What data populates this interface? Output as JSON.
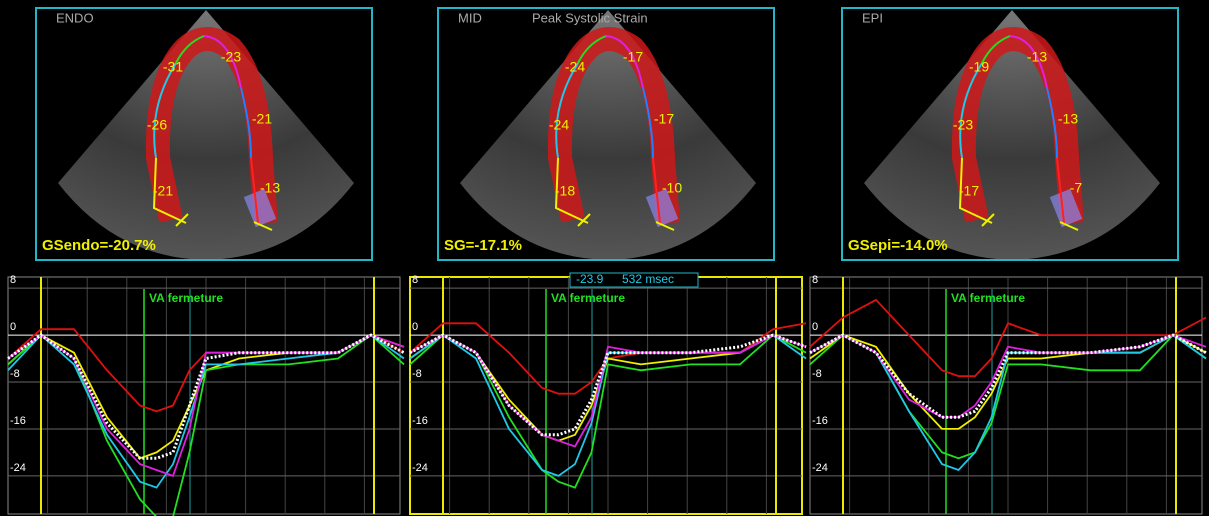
{
  "panels": [
    {
      "label": "ENDO",
      "global": "GSendo=-20.7%",
      "segments": [
        "-31",
        "-23",
        "-26",
        "-21",
        "-21",
        "-13"
      ]
    },
    {
      "label": "MID",
      "title": "Peak Systolic Strain",
      "global": "SG=-17.1%",
      "segments": [
        "-24",
        "-17",
        "-24",
        "-17",
        "-18",
        "-10"
      ]
    },
    {
      "label": "EPI",
      "global": "GSepi=-14.0%",
      "segments": [
        "-19",
        "-13",
        "-23",
        "-13",
        "-17",
        "-7"
      ]
    }
  ],
  "chart_data": [
    {
      "type": "line",
      "annotation": "VA fermeture",
      "x": [
        0,
        2,
        4,
        6,
        8,
        9,
        10,
        11,
        12,
        14,
        17,
        20,
        22,
        24
      ],
      "xlim": [
        0,
        24
      ],
      "ylim": [
        -30.5,
        9.9
      ],
      "yticks": [
        8,
        0,
        -8,
        -16,
        -24
      ],
      "grid": true,
      "series": [
        {
          "color": "#e01010",
          "values": [
            -4,
            1,
            1,
            -6,
            -12,
            -13,
            -12,
            -6,
            -3,
            -3,
            -3,
            -3,
            0,
            -3
          ]
        },
        {
          "color": "#f0f000",
          "values": [
            -5,
            0,
            -3,
            -14,
            -21,
            -20,
            -18,
            -12,
            -6,
            -4,
            -3,
            -3,
            0,
            -2
          ]
        },
        {
          "color": "#20e020",
          "values": [
            -5,
            0,
            -4,
            -18,
            -28,
            -31,
            -31,
            -20,
            -6,
            -5,
            -5,
            -4,
            0,
            -5
          ]
        },
        {
          "color": "#20c8e8",
          "values": [
            -6,
            0,
            -5,
            -17,
            -25,
            -26,
            -22,
            -14,
            -5,
            -5,
            -4,
            -3,
            0,
            -4
          ]
        },
        {
          "color": "#e020e0",
          "values": [
            -4,
            0,
            -4,
            -16,
            -22,
            -23,
            -24,
            -16,
            -3,
            -3,
            -3,
            -3,
            0,
            -2
          ]
        },
        {
          "color": "#ffffff",
          "values": [
            -4,
            0,
            -4,
            -15,
            -21,
            -21,
            -20,
            -12,
            -4,
            -3,
            -3,
            -3,
            0,
            -3
          ]
        }
      ]
    },
    {
      "type": "line",
      "annotation": "VA fermeture",
      "annotations": [
        "-23.9",
        "532 msec"
      ],
      "x": [
        0,
        2,
        4,
        6,
        8,
        9,
        10,
        11,
        12,
        14,
        17,
        20,
        22,
        24
      ],
      "xlim": [
        0,
        24
      ],
      "ylim": [
        -30.5,
        9.9
      ],
      "yticks": [
        8,
        0,
        -8,
        -16,
        -24
      ],
      "grid": true,
      "series": [
        {
          "color": "#e01010",
          "values": [
            -3,
            2,
            2,
            -3,
            -9,
            -10,
            -10,
            -8,
            -4,
            -3,
            -3,
            -3,
            1,
            2
          ]
        },
        {
          "color": "#f0f000",
          "values": [
            -4,
            0,
            -3,
            -11,
            -17,
            -18,
            -17,
            -12,
            -4,
            -5,
            -4,
            -3,
            0,
            -2
          ]
        },
        {
          "color": "#20e020",
          "values": [
            -5,
            0,
            -3,
            -14,
            -23,
            -25,
            -26,
            -20,
            -5,
            -6,
            -5,
            -5,
            0,
            -3
          ]
        },
        {
          "color": "#20c8e8",
          "values": [
            -4,
            0,
            -4,
            -16,
            -23,
            -24,
            -22,
            -15,
            -3,
            -3,
            -3,
            -3,
            0,
            -4
          ]
        },
        {
          "color": "#e020e0",
          "values": [
            -3,
            0,
            -3,
            -12,
            -17,
            -18,
            -19,
            -14,
            -2,
            -3,
            -3,
            -3,
            0,
            -2
          ]
        },
        {
          "color": "#ffffff",
          "values": [
            -3,
            0,
            -3,
            -12,
            -17,
            -17,
            -16,
            -11,
            -3,
            -3,
            -3,
            -2,
            0,
            -2
          ]
        }
      ]
    },
    {
      "type": "line",
      "annotation": "VA fermeture",
      "x": [
        0,
        2,
        4,
        6,
        8,
        9,
        10,
        11,
        12,
        14,
        17,
        20,
        22,
        24
      ],
      "xlim": [
        0,
        24
      ],
      "ylim": [
        -30.5,
        9.9
      ],
      "yticks": [
        8,
        0,
        -8,
        -16,
        -24
      ],
      "grid": true,
      "series": [
        {
          "color": "#e01010",
          "values": [
            -2,
            3,
            6,
            0,
            -6,
            -7,
            -7,
            -4,
            2,
            0,
            0,
            0,
            0,
            3
          ]
        },
        {
          "color": "#f0f000",
          "values": [
            -4,
            0,
            -2,
            -10,
            -16,
            -16,
            -14,
            -10,
            -4,
            -4,
            -3,
            -3,
            0,
            -3
          ]
        },
        {
          "color": "#20e020",
          "values": [
            -5,
            0,
            -3,
            -13,
            -20,
            -21,
            -20,
            -15,
            -5,
            -5,
            -6,
            -6,
            0,
            -4
          ]
        },
        {
          "color": "#20c8e8",
          "values": [
            -3,
            0,
            -3,
            -13,
            -22,
            -23,
            -20,
            -14,
            -3,
            -3,
            -3,
            -3,
            0,
            -4
          ]
        },
        {
          "color": "#e020e0",
          "values": [
            -3,
            0,
            -3,
            -11,
            -14,
            -14,
            -12,
            -8,
            -2,
            -3,
            -3,
            -2,
            0,
            -2
          ]
        },
        {
          "color": "#ffffff",
          "values": [
            -3,
            0,
            -3,
            -10,
            -14,
            -14,
            -13,
            -9,
            -3,
            -3,
            -3,
            -2,
            0,
            -3
          ]
        }
      ]
    }
  ]
}
